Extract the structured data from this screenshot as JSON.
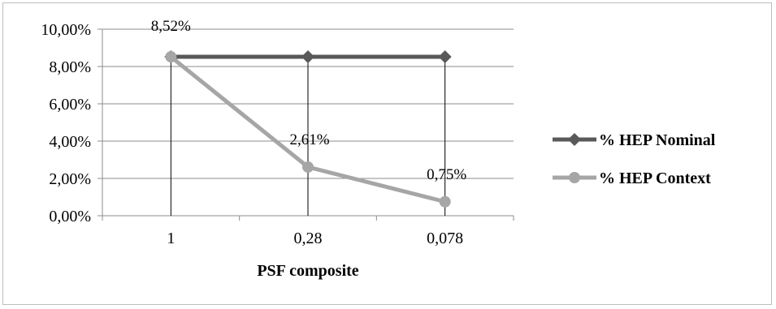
{
  "chart_data": {
    "type": "line",
    "categories": [
      "1",
      "0,28",
      "0,078"
    ],
    "xlabel": "PSF composite",
    "ylabel": "",
    "ylim": [
      0,
      10
    ],
    "yticks": [
      "0,00%",
      "2,00%",
      "4,00%",
      "6,00%",
      "8,00%",
      "10,00%"
    ],
    "grid": true,
    "legend_position": "right",
    "series": [
      {
        "name": "% HEP Nominal",
        "values": [
          8.52,
          8.52,
          8.52
        ],
        "color": "#595959",
        "marker": "diamond",
        "data_labels": [
          "8,52%",
          "",
          ""
        ]
      },
      {
        "name": "% HEP Context",
        "values": [
          8.52,
          2.61,
          0.75
        ],
        "color": "#a6a6a6",
        "marker": "circle",
        "data_labels": [
          "",
          "2,61%",
          "0,75%"
        ]
      }
    ]
  }
}
